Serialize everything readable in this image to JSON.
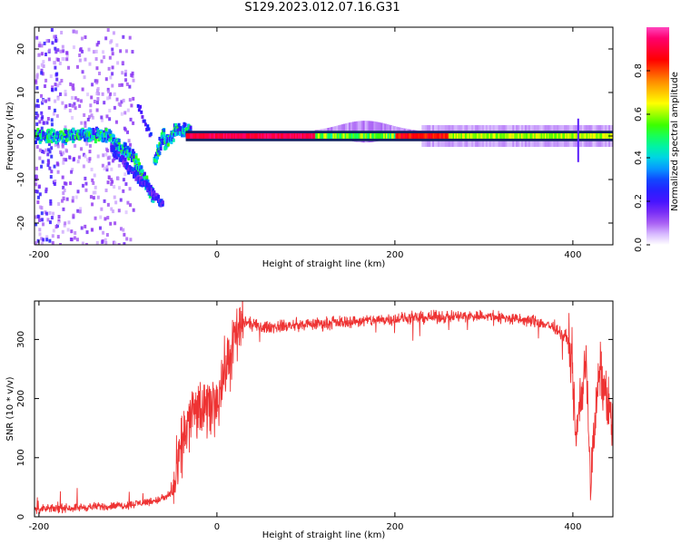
{
  "figure": {
    "title": "S129.2023.012.07.16.G31"
  },
  "chart_data": [
    {
      "type": "heatmap",
      "xlabel": "Height of straight line (km)",
      "ylabel": "Frequency (Hz)",
      "xlim": [
        -205,
        445
      ],
      "ylim": [
        -25,
        25
      ],
      "xticks": [
        -200,
        0,
        200,
        400
      ],
      "yticks": [
        -20,
        -10,
        0,
        10,
        20
      ],
      "colorbar": {
        "label": "Normalized spectral amplitude",
        "range": [
          0.0,
          1.0
        ],
        "ticks": [
          0.0,
          0.2,
          0.4,
          0.6,
          0.8
        ],
        "colors": [
          "#ffffff",
          "#c080ff",
          "#6010e0",
          "#1010ff",
          "#00c0ff",
          "#00ff80",
          "#40ff00",
          "#ffff00",
          "#ff8000",
          "#ff0000",
          "#ff0080",
          "#ff40c0"
        ]
      },
      "features": {
        "narrow_band_center_hz": 0,
        "narrow_band_start_km": -35,
        "narrow_band_end_km": 445,
        "scintillation_region_km": [
          -205,
          -30
        ],
        "diffraction_trace_km": [
          -120,
          -40
        ]
      }
    },
    {
      "type": "line",
      "xlabel": "Height of straight line (km)",
      "ylabel": "SNR (10 * v/v)",
      "xlim": [
        -205,
        445
      ],
      "ylim": [
        0,
        365
      ],
      "xticks": [
        -200,
        0,
        200,
        400
      ],
      "yticks": [
        0,
        100,
        200,
        300
      ],
      "series": [
        {
          "color": "#ee3333",
          "x": [
            -205,
            -180,
            -150,
            -120,
            -100,
            -80,
            -60,
            -48,
            -42,
            -35,
            -25,
            -15,
            0,
            10,
            20,
            30,
            50,
            100,
            150,
            200,
            250,
            300,
            330,
            360,
            380,
            395,
            400,
            403,
            408,
            412,
            415,
            420,
            423,
            430,
            438,
            445
          ],
          "y": [
            12,
            14,
            16,
            18,
            20,
            25,
            30,
            45,
            100,
            150,
            180,
            175,
            200,
            250,
            300,
            330,
            320,
            325,
            330,
            335,
            338,
            340,
            335,
            330,
            320,
            300,
            250,
            120,
            200,
            220,
            280,
            50,
            120,
            250,
            200,
            150
          ]
        }
      ]
    }
  ]
}
